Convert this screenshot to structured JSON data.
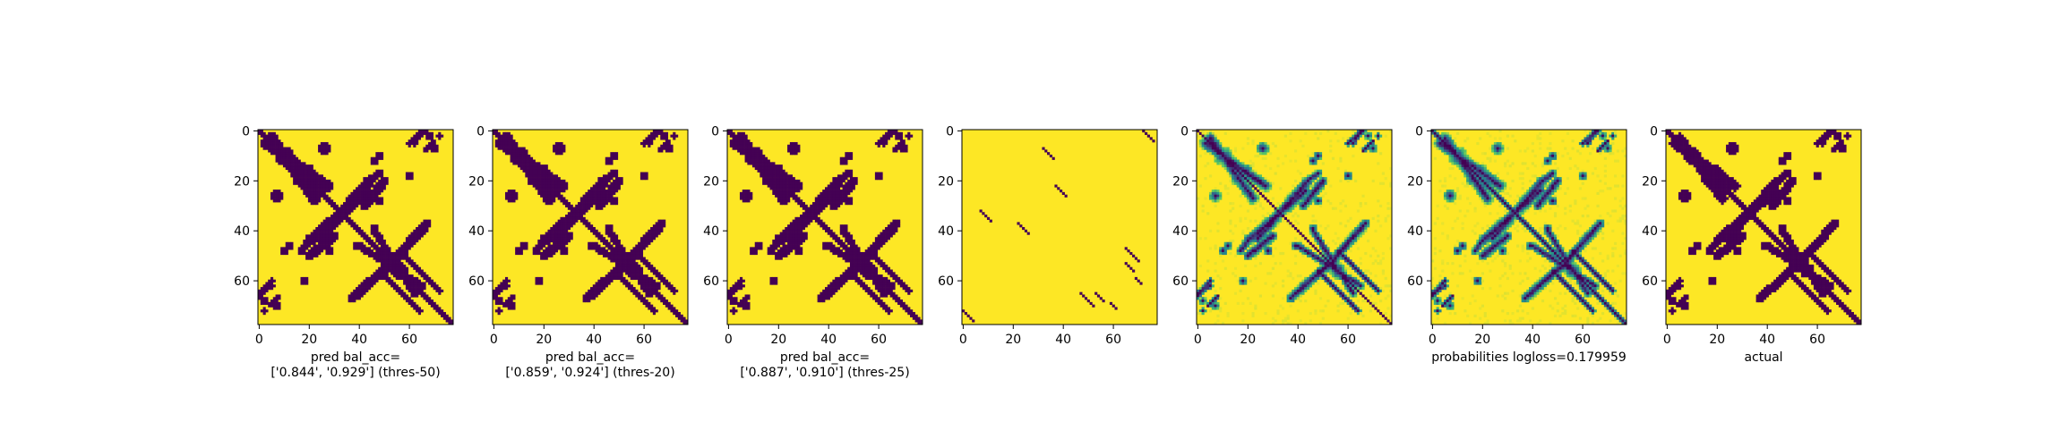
{
  "chart_data": {
    "type": "heatmap",
    "colormap": {
      "low": "#440154",
      "mid": "#21918c",
      "mid2": "#5ec962",
      "high": "#fde725"
    },
    "matrix_size": 78,
    "xlim": [
      0,
      77
    ],
    "ylim": [
      77,
      0
    ],
    "x_ticks": [
      0,
      20,
      40,
      60
    ],
    "y_ticks": [
      0,
      20,
      40,
      60
    ],
    "x_tick_labels": [
      "0",
      "20",
      "40",
      "60"
    ],
    "y_tick_labels": [
      "0",
      "20",
      "40",
      "60"
    ],
    "panels": [
      {
        "kind": "binary",
        "caption_lines": [
          "pred bal_acc=",
          "['0.844', '0.929'] (thres-50)"
        ]
      },
      {
        "kind": "binary",
        "caption_lines": [
          "pred bal_acc=",
          "['0.859', '0.924'] (thres-20)"
        ]
      },
      {
        "kind": "binary",
        "caption_lines": [
          "pred bal_acc=",
          "['0.887', '0.910'] (thres-25)"
        ]
      },
      {
        "kind": "sparse",
        "caption_lines": []
      },
      {
        "kind": "probabilities",
        "caption_lines": []
      },
      {
        "kind": "probabilities_diag",
        "caption_lines": [
          "probabilities logloss=0.179959"
        ]
      },
      {
        "kind": "actual",
        "caption_lines": [
          "actual"
        ]
      }
    ]
  }
}
